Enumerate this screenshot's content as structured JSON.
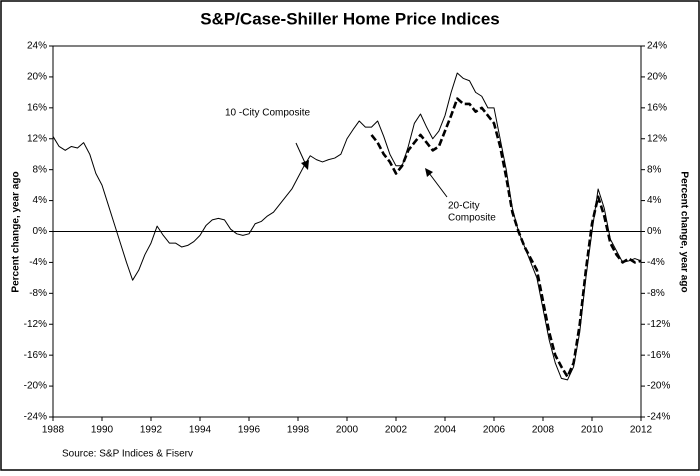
{
  "chart_data": {
    "type": "line",
    "title": "S&P/Case-Shiller Home Price Indices",
    "y_label": "Percent change, year ago",
    "y2_label": "Percent change, year ago",
    "source": "Source: S&P Indices & Fiserv",
    "annotations": [
      [
        "10 -City Composite"
      ],
      [
        "20-City",
        "Composite"
      ]
    ],
    "xlim": [
      1988,
      2012
    ],
    "xticks": [
      1988,
      1990,
      1992,
      1994,
      1996,
      1998,
      2000,
      2002,
      2004,
      2006,
      2008,
      2010,
      2012
    ],
    "ylim": [
      -24,
      24
    ],
    "yticks": [
      {
        "value": -24,
        "label": "-24%"
      },
      {
        "value": -20,
        "label": "-20%"
      },
      {
        "value": -16,
        "label": "-16%"
      },
      {
        "value": -12,
        "label": "-12%"
      },
      {
        "value": -8,
        "label": "-8%"
      },
      {
        "value": -4,
        "label": "-4%"
      },
      {
        "value": 0,
        "label": "0%"
      },
      {
        "value": 4,
        "label": "4%"
      },
      {
        "value": 8,
        "label": "8%"
      },
      {
        "value": 12,
        "label": "12%"
      },
      {
        "value": 16,
        "label": "16%"
      },
      {
        "value": 20,
        "label": "20%"
      },
      {
        "value": 24,
        "label": "24%"
      }
    ],
    "y2lim": [
      -24,
      24
    ],
    "y2ticks": [
      {
        "value": -24,
        "label": "-24%"
      },
      {
        "value": -20,
        "label": "-20%"
      },
      {
        "value": -16,
        "label": "-16%"
      },
      {
        "value": -12,
        "label": "-12%"
      },
      {
        "value": -8,
        "label": "-8%"
      },
      {
        "value": -4,
        "label": "-4%"
      },
      {
        "value": 0,
        "label": "0%"
      },
      {
        "value": 4,
        "label": "4%"
      },
      {
        "value": 8,
        "label": "8%"
      },
      {
        "value": 12,
        "label": "12%"
      },
      {
        "value": 16,
        "label": "16%"
      },
      {
        "value": 20,
        "label": "20%"
      },
      {
        "value": 24,
        "label": "24%"
      }
    ],
    "grid": false,
    "zero_line": true,
    "x": [
      1988,
      1988.25,
      1988.5,
      1988.75,
      1989,
      1989.25,
      1989.5,
      1989.75,
      1990,
      1990.25,
      1990.5,
      1990.75,
      1991,
      1991.25,
      1991.5,
      1991.75,
      1992,
      1992.25,
      1992.5,
      1992.75,
      1993,
      1993.25,
      1993.5,
      1993.75,
      1994,
      1994.25,
      1994.5,
      1994.75,
      1995,
      1995.25,
      1995.5,
      1995.75,
      1996,
      1996.25,
      1996.5,
      1996.75,
      1997,
      1997.25,
      1997.5,
      1997.75,
      1998,
      1998.25,
      1998.5,
      1998.75,
      1999,
      1999.25,
      1999.5,
      1999.75,
      2000,
      2000.25,
      2000.5,
      2000.75,
      2001,
      2001.25,
      2001.5,
      2001.75,
      2002,
      2002.25,
      2002.5,
      2002.75,
      2003,
      2003.25,
      2003.5,
      2003.75,
      2004,
      2004.25,
      2004.5,
      2004.75,
      2005,
      2005.25,
      2005.5,
      2005.75,
      2006,
      2006.25,
      2006.5,
      2006.75,
      2007,
      2007.25,
      2007.5,
      2007.75,
      2008,
      2008.25,
      2008.5,
      2008.75,
      2009,
      2009.25,
      2009.5,
      2009.75,
      2010,
      2010.25,
      2010.5,
      2010.75,
      2011,
      2011.25,
      2011.5,
      2011.75,
      2012
    ],
    "series": [
      {
        "name": "10 -City Composite",
        "color": "#000000",
        "line_style": "solid",
        "line_width": 1,
        "values": [
          12.3,
          11,
          10.5,
          11,
          10.8,
          11.5,
          10,
          7.5,
          6,
          3.5,
          1,
          -1.5,
          -4,
          -6.3,
          -5,
          -3,
          -1.5,
          0.7,
          -0.5,
          -1.5,
          -1.5,
          -2,
          -1.8,
          -1.3,
          -0.5,
          0.8,
          1.5,
          1.7,
          1.5,
          0.3,
          -0.3,
          -0.5,
          -0.3,
          1,
          1.3,
          2,
          2.5,
          3.5,
          4.5,
          5.5,
          7,
          8.5,
          9.8,
          9.3,
          9,
          9.3,
          9.5,
          10,
          12,
          13.2,
          14.3,
          13.5,
          13.5,
          14.3,
          12.3,
          10,
          8.5,
          8.5,
          11,
          14,
          15.2,
          13.5,
          12,
          13,
          15,
          18,
          20.5,
          19.8,
          19.5,
          18,
          17.5,
          16,
          16,
          12,
          8,
          3,
          0,
          -2,
          -4,
          -6,
          -10,
          -14,
          -17,
          -19,
          -19.2,
          -17.5,
          -13,
          -6,
          0,
          5.5,
          3,
          -1,
          -2.5,
          -4,
          -3.8,
          -3.5,
          -3.8
        ]
      },
      {
        "name": "20-City Composite",
        "color": "#000000",
        "line_style": "dashed",
        "line_width": 2.6,
        "values": [
          null,
          null,
          null,
          null,
          null,
          null,
          null,
          null,
          null,
          null,
          null,
          null,
          null,
          null,
          null,
          null,
          null,
          null,
          null,
          null,
          null,
          null,
          null,
          null,
          null,
          null,
          null,
          null,
          null,
          null,
          null,
          null,
          null,
          null,
          null,
          null,
          null,
          null,
          null,
          null,
          null,
          null,
          null,
          null,
          null,
          null,
          null,
          null,
          null,
          null,
          null,
          null,
          12.5,
          11.5,
          10,
          9,
          7.5,
          8.5,
          10.5,
          11.5,
          12.5,
          11.5,
          10.5,
          11,
          13,
          15,
          17.2,
          16.5,
          16.5,
          15.5,
          16,
          15,
          14,
          11,
          7,
          2.5,
          0,
          -2,
          -3.5,
          -5,
          -9,
          -13,
          -16,
          -17.5,
          -18.8,
          -17,
          -12,
          -5,
          1,
          4.5,
          2,
          -1.5,
          -3,
          -4,
          -3.5,
          -4,
          -3.8
        ]
      }
    ]
  }
}
